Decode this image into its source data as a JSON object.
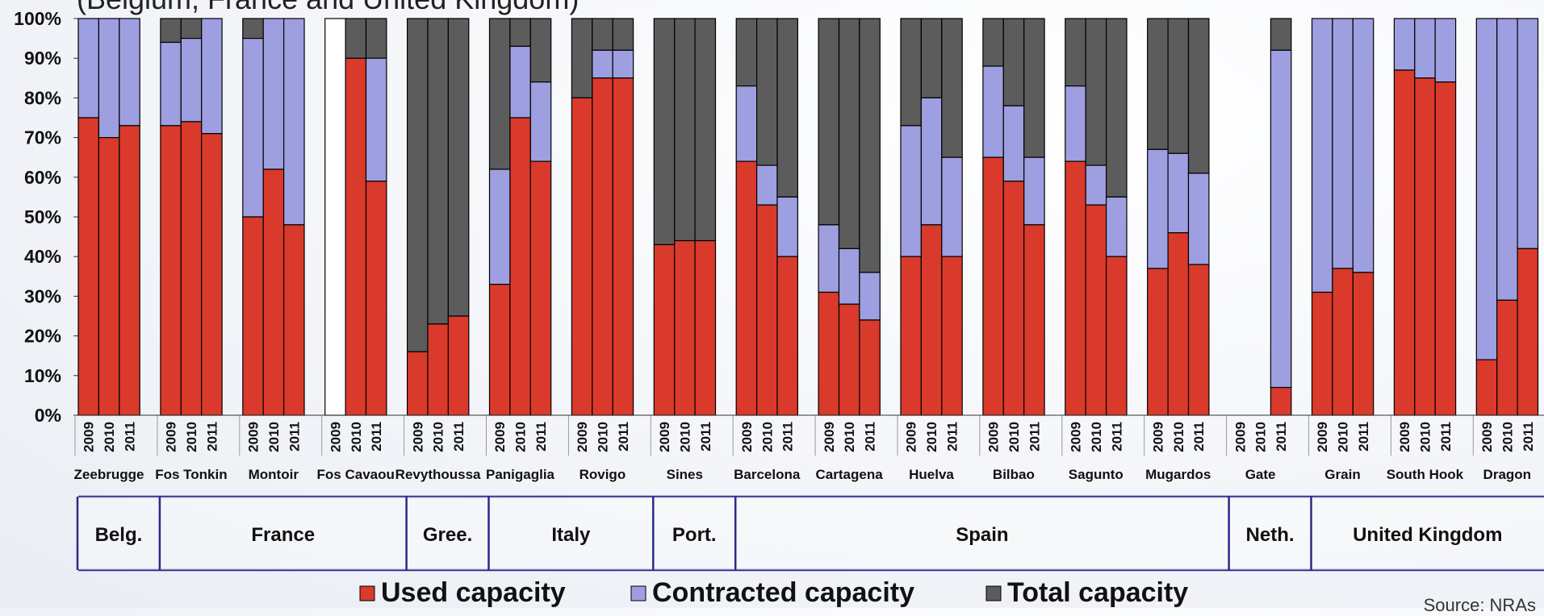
{
  "title_partial": "(Belgium, France and United Kingdom)",
  "source": "Source: NRAs",
  "colors": {
    "used": "#d93a2b",
    "contracted": "#9e9fe0",
    "total": "#5c5c5c"
  },
  "chart_data": {
    "type": "bar",
    "stacked": true,
    "title": "(Belgium, France and United Kingdom)",
    "ylim": [
      0,
      100
    ],
    "yticks": [
      "0%",
      "10%",
      "20%",
      "30%",
      "40%",
      "50%",
      "60%",
      "70%",
      "80%",
      "90%",
      "100%"
    ],
    "legend": [
      "Used capacity",
      "Contracted capacity",
      "Total capacity"
    ],
    "legend_position": "bottom",
    "years": [
      "2009",
      "2010",
      "2011"
    ],
    "terminals": [
      {
        "name": "Zeebrugge",
        "values": [
          [
            75,
            100
          ],
          [
            70,
            100
          ],
          [
            73,
            100
          ]
        ]
      },
      {
        "name": "Fos Tonkin",
        "values": [
          [
            73,
            94
          ],
          [
            74,
            95
          ],
          [
            71,
            100
          ]
        ]
      },
      {
        "name": "Montoir",
        "values": [
          [
            50,
            95
          ],
          [
            62,
            100
          ],
          [
            48,
            100
          ]
        ]
      },
      {
        "name": "Fos Cavaou",
        "values": [
          null,
          [
            90,
            90
          ],
          [
            59,
            90
          ]
        ]
      },
      {
        "name": "Revythoussa",
        "values": [
          [
            16,
            16
          ],
          [
            23,
            23
          ],
          [
            25,
            25
          ]
        ]
      },
      {
        "name": "Panigaglia",
        "values": [
          [
            33,
            62
          ],
          [
            75,
            93
          ],
          [
            64,
            84
          ]
        ]
      },
      {
        "name": "Rovigo",
        "values": [
          [
            80,
            80
          ],
          [
            85,
            92
          ],
          [
            85,
            92
          ]
        ]
      },
      {
        "name": "Sines",
        "values": [
          [
            43,
            43
          ],
          [
            44,
            44
          ],
          [
            44,
            44
          ]
        ]
      },
      {
        "name": "Barcelona",
        "values": [
          [
            64,
            83
          ],
          [
            53,
            63
          ],
          [
            40,
            55
          ]
        ]
      },
      {
        "name": "Cartagena",
        "values": [
          [
            31,
            48
          ],
          [
            28,
            42
          ],
          [
            24,
            36
          ]
        ]
      },
      {
        "name": "Huelva",
        "values": [
          [
            40,
            73
          ],
          [
            48,
            80
          ],
          [
            40,
            65
          ]
        ]
      },
      {
        "name": "Bilbao",
        "values": [
          [
            65,
            88
          ],
          [
            59,
            78
          ],
          [
            48,
            65
          ]
        ]
      },
      {
        "name": "Sagunto",
        "values": [
          [
            64,
            83
          ],
          [
            53,
            63
          ],
          [
            40,
            55
          ]
        ]
      },
      {
        "name": "Mugardos",
        "values": [
          [
            37,
            67
          ],
          [
            46,
            66
          ],
          [
            38,
            61
          ]
        ]
      },
      {
        "name": "Gate",
        "values": [
          null,
          null,
          [
            7,
            92
          ]
        ]
      },
      {
        "name": "Grain",
        "values": [
          [
            31,
            100
          ],
          [
            37,
            100
          ],
          [
            36,
            100
          ]
        ]
      },
      {
        "name": "South Hook",
        "values": [
          [
            87,
            100
          ],
          [
            85,
            100
          ],
          [
            84,
            100
          ]
        ]
      },
      {
        "name": "Dragon",
        "values": [
          [
            14,
            100
          ],
          [
            29,
            100
          ],
          [
            42,
            100
          ]
        ]
      }
    ],
    "countries": [
      {
        "name": "Belg.",
        "span": [
          0,
          0
        ]
      },
      {
        "name": "France",
        "span": [
          1,
          3
        ]
      },
      {
        "name": "Gree.",
        "span": [
          4,
          4
        ]
      },
      {
        "name": "Italy",
        "span": [
          5,
          6
        ]
      },
      {
        "name": "Port.",
        "span": [
          7,
          7
        ]
      },
      {
        "name": "Spain",
        "span": [
          8,
          13
        ]
      },
      {
        "name": "Neth.",
        "span": [
          14,
          14
        ]
      },
      {
        "name": "United Kingdom",
        "span": [
          15,
          17
        ]
      }
    ]
  }
}
